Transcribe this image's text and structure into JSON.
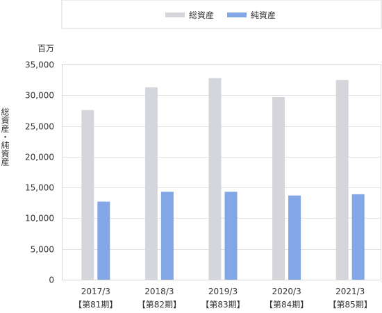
{
  "chart_data": {
    "type": "bar",
    "title": "",
    "unit_label": "百万",
    "ylabel": "総資産・純資産",
    "xlabel": "",
    "categories": [
      {
        "period": "2017/3",
        "term": "【第81期】"
      },
      {
        "period": "2018/3",
        "term": "【第82期】"
      },
      {
        "period": "2019/3",
        "term": "【第83期】"
      },
      {
        "period": "2020/3",
        "term": "【第84期】"
      },
      {
        "period": "2021/3",
        "term": "【第85期】"
      }
    ],
    "series": [
      {
        "name": "総資産",
        "color": "#d4d6dc",
        "values": [
          27600,
          31300,
          32800,
          29700,
          32500
        ]
      },
      {
        "name": "純資産",
        "color": "#82a6e6",
        "values": [
          12700,
          14300,
          14300,
          13700,
          13900
        ]
      }
    ],
    "ylim": [
      0,
      35000
    ],
    "yticks": [
      0,
      5000,
      10000,
      15000,
      20000,
      25000,
      30000,
      35000
    ],
    "ytick_labels": [
      "0",
      "5,000",
      "10,000",
      "15,000",
      "20,000",
      "25,000",
      "30,000",
      "35,000"
    ],
    "grid": true,
    "legend_position": "top"
  }
}
